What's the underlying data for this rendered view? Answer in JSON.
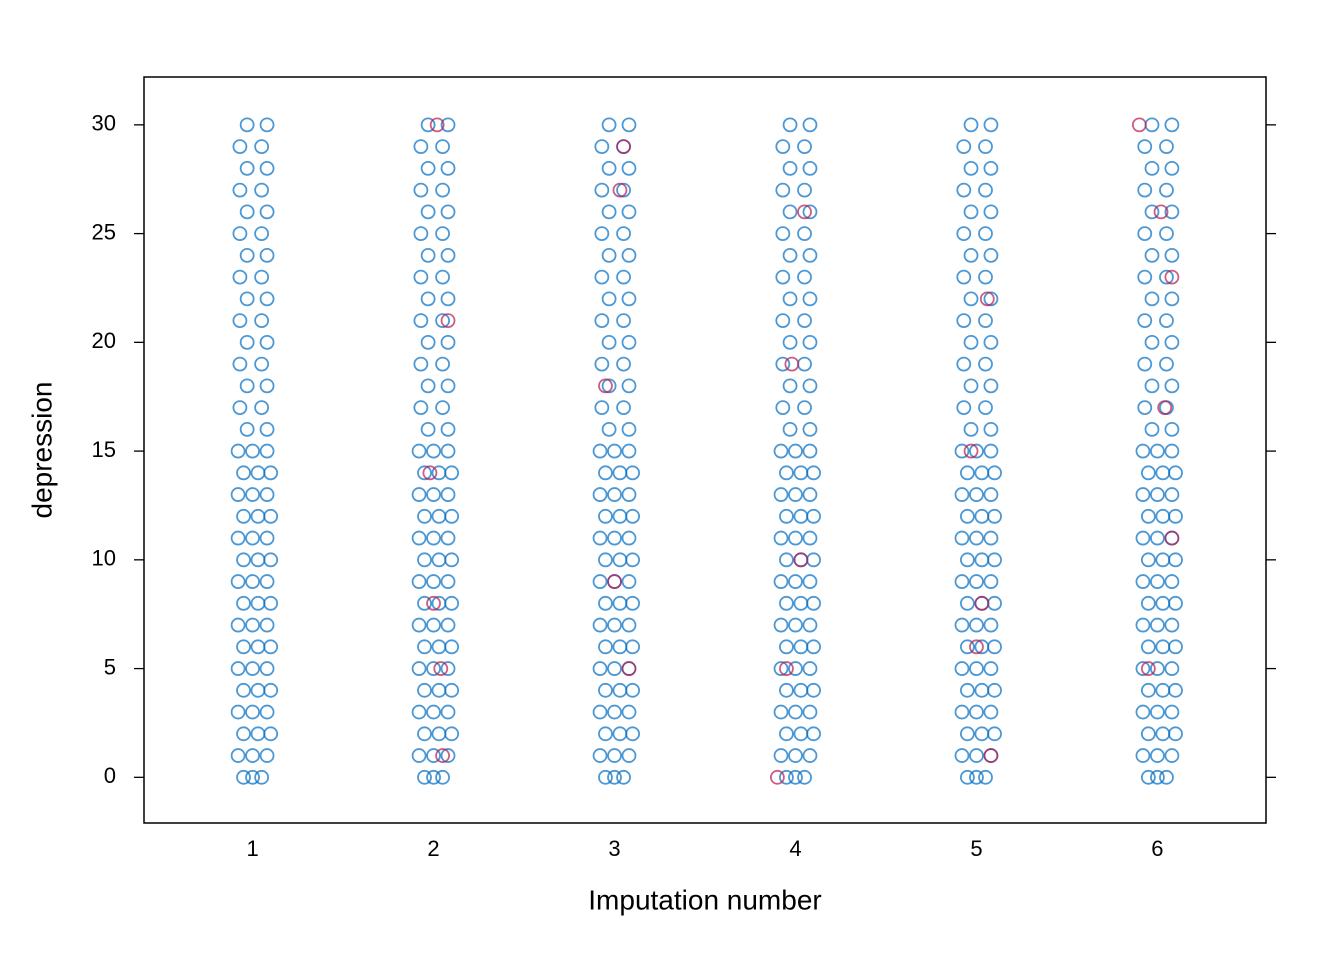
{
  "chart_data": {
    "type": "scatter",
    "xlabel": "Imputation number",
    "ylabel": "depression",
    "xlim": [
      0.4,
      6.6
    ],
    "ylim": [
      -2.1,
      32.2
    ],
    "xticks": [
      1,
      2,
      3,
      4,
      5,
      6
    ],
    "yticks": [
      0,
      5,
      10,
      15,
      20,
      25,
      30
    ],
    "series": [
      {
        "color": "#006cc2",
        "x": [
          0.95,
          1,
          1.05,
          0.92,
          1,
          1.08,
          0.95,
          1.03,
          1.1,
          0.92,
          1,
          1.08,
          0.95,
          1.03,
          1.1,
          0.92,
          1,
          1.08,
          0.95,
          1.03,
          1.1,
          0.92,
          1,
          1.08,
          0.95,
          1.03,
          1.1,
          0.92,
          1,
          1.08,
          0.95,
          1.03,
          1.1,
          0.92,
          1,
          1.08,
          0.95,
          1.03,
          1.1,
          0.92,
          1,
          1.08,
          0.95,
          1.03,
          1.1,
          0.92,
          1,
          1.08,
          0.97,
          1.08,
          0.93,
          1.05,
          0.97,
          1.08,
          0.93,
          1.05,
          0.97,
          1.08,
          0.93,
          1.05,
          0.97,
          1.08,
          0.93,
          1.05,
          0.97,
          1.08,
          0.93,
          1.05,
          0.97,
          1.08,
          0.93,
          1.05,
          0.97,
          1.08,
          0.93,
          1.05,
          0.97,
          1.08,
          1.95,
          2,
          2.05,
          1.92,
          2,
          2.08,
          1.95,
          2.03,
          2.1,
          1.92,
          2,
          2.08,
          1.95,
          2.03,
          2.1,
          1.92,
          2,
          2.08,
          1.95,
          2.03,
          2.1,
          1.92,
          2,
          2.08,
          1.95,
          2.03,
          2.1,
          1.92,
          2,
          2.08,
          1.95,
          2.03,
          2.1,
          1.92,
          2,
          2.08,
          1.95,
          2.03,
          2.1,
          1.92,
          2,
          2.08,
          1.95,
          2.03,
          2.1,
          1.92,
          2,
          2.08,
          1.97,
          2.08,
          1.93,
          2.05,
          1.97,
          2.08,
          1.93,
          2.05,
          1.97,
          2.08,
          1.93,
          2.05,
          1.97,
          2.08,
          1.93,
          2.05,
          1.97,
          2.08,
          1.93,
          2.05,
          1.97,
          2.08,
          1.93,
          2.05,
          1.97,
          2.08,
          1.93,
          2.05,
          1.97,
          2.08,
          2.95,
          3,
          3.05,
          2.92,
          3,
          3.08,
          2.95,
          3.03,
          3.1,
          2.92,
          3,
          3.08,
          2.95,
          3.03,
          3.1,
          2.92,
          3,
          3.08,
          2.95,
          3.03,
          3.1,
          2.92,
          3,
          3.08,
          2.95,
          3.03,
          3.1,
          2.92,
          3,
          3.08,
          2.95,
          3.03,
          3.1,
          2.92,
          3,
          3.08,
          2.95,
          3.03,
          3.1,
          2.92,
          3,
          3.08,
          2.95,
          3.03,
          3.1,
          2.92,
          3,
          3.08,
          2.97,
          3.08,
          2.93,
          3.05,
          2.97,
          3.08,
          2.93,
          3.05,
          2.97,
          3.08,
          2.93,
          3.05,
          2.97,
          3.08,
          2.93,
          3.05,
          2.97,
          3.08,
          2.93,
          3.05,
          2.97,
          3.08,
          2.93,
          3.05,
          2.97,
          3.08,
          2.93,
          3.05,
          2.97,
          3.08,
          3.95,
          4,
          4.05,
          3.92,
          4,
          4.08,
          3.95,
          4.03,
          4.1,
          3.92,
          4,
          4.08,
          3.95,
          4.03,
          4.1,
          3.92,
          4,
          4.08,
          3.95,
          4.03,
          4.1,
          3.92,
          4,
          4.08,
          3.95,
          4.03,
          4.1,
          3.92,
          4,
          4.08,
          3.95,
          4.03,
          4.1,
          3.92,
          4,
          4.08,
          3.95,
          4.03,
          4.1,
          3.92,
          4,
          4.08,
          3.95,
          4.03,
          4.1,
          3.92,
          4,
          4.08,
          3.97,
          4.08,
          3.93,
          4.05,
          3.97,
          4.08,
          3.93,
          4.05,
          3.97,
          4.08,
          3.93,
          4.05,
          3.97,
          4.08,
          3.93,
          4.05,
          3.97,
          4.08,
          3.93,
          4.05,
          3.97,
          4.08,
          3.93,
          4.05,
          3.97,
          4.08,
          3.93,
          4.05,
          3.97,
          4.08,
          4.95,
          5,
          5.05,
          4.92,
          5,
          5.08,
          4.95,
          5.03,
          5.1,
          4.92,
          5,
          5.08,
          4.95,
          5.03,
          5.1,
          4.92,
          5,
          5.08,
          4.95,
          5.03,
          5.1,
          4.92,
          5,
          5.08,
          4.95,
          5.03,
          5.1,
          4.92,
          5,
          5.08,
          4.95,
          5.03,
          5.1,
          4.92,
          5,
          5.08,
          4.95,
          5.03,
          5.1,
          4.92,
          5,
          5.08,
          4.95,
          5.03,
          5.1,
          4.92,
          5,
          5.08,
          4.97,
          5.08,
          4.93,
          5.05,
          4.97,
          5.08,
          4.93,
          5.05,
          4.97,
          5.08,
          4.93,
          5.05,
          4.97,
          5.08,
          4.93,
          5.05,
          4.97,
          5.08,
          4.93,
          5.05,
          4.97,
          5.08,
          4.93,
          5.05,
          4.97,
          5.08,
          4.93,
          5.05,
          4.97,
          5.08,
          5.95,
          6,
          6.05,
          5.92,
          6,
          6.08,
          5.95,
          6.03,
          6.1,
          5.92,
          6,
          6.08,
          5.95,
          6.03,
          6.1,
          5.92,
          6,
          6.08,
          5.95,
          6.03,
          6.1,
          5.92,
          6,
          6.08,
          5.95,
          6.03,
          6.1,
          5.92,
          6,
          6.08,
          5.95,
          6.03,
          6.1,
          5.92,
          6,
          6.08,
          5.95,
          6.03,
          6.1,
          5.92,
          6,
          6.08,
          5.95,
          6.03,
          6.1,
          5.92,
          6,
          6.08,
          5.97,
          6.08,
          5.93,
          6.05,
          5.97,
          6.08,
          5.93,
          6.05,
          5.97,
          6.08,
          5.93,
          6.05,
          5.97,
          6.08,
          5.93,
          6.05,
          5.97,
          6.08,
          5.93,
          6.05,
          5.97,
          6.08,
          5.93,
          6.05,
          5.97,
          6.08,
          5.93,
          6.05,
          5.97,
          6.08
        ],
        "values": [
          0,
          0,
          0,
          1,
          1,
          1,
          2,
          2,
          2,
          3,
          3,
          3,
          4,
          4,
          4,
          5,
          5,
          5,
          6,
          6,
          6,
          7,
          7,
          7,
          8,
          8,
          8,
          9,
          9,
          9,
          10,
          10,
          10,
          11,
          11,
          11,
          12,
          12,
          12,
          13,
          13,
          13,
          14,
          14,
          14,
          15,
          15,
          15,
          16,
          16,
          17,
          17,
          18,
          18,
          19,
          19,
          20,
          20,
          21,
          21,
          22,
          22,
          23,
          23,
          24,
          24,
          25,
          25,
          26,
          26,
          27,
          27,
          28,
          28,
          29,
          29,
          30,
          30,
          0,
          0,
          0,
          1,
          1,
          1,
          2,
          2,
          2,
          3,
          3,
          3,
          4,
          4,
          4,
          5,
          5,
          5,
          6,
          6,
          6,
          7,
          7,
          7,
          8,
          8,
          8,
          9,
          9,
          9,
          10,
          10,
          10,
          11,
          11,
          11,
          12,
          12,
          12,
          13,
          13,
          13,
          14,
          14,
          14,
          15,
          15,
          15,
          16,
          16,
          17,
          17,
          18,
          18,
          19,
          19,
          20,
          20,
          21,
          21,
          22,
          22,
          23,
          23,
          24,
          24,
          25,
          25,
          26,
          26,
          27,
          27,
          28,
          28,
          29,
          29,
          30,
          30,
          0,
          0,
          0,
          1,
          1,
          1,
          2,
          2,
          2,
          3,
          3,
          3,
          4,
          4,
          4,
          5,
          5,
          5,
          6,
          6,
          6,
          7,
          7,
          7,
          8,
          8,
          8,
          9,
          9,
          9,
          10,
          10,
          10,
          11,
          11,
          11,
          12,
          12,
          12,
          13,
          13,
          13,
          14,
          14,
          14,
          15,
          15,
          15,
          16,
          16,
          17,
          17,
          18,
          18,
          19,
          19,
          20,
          20,
          21,
          21,
          22,
          22,
          23,
          23,
          24,
          24,
          25,
          25,
          26,
          26,
          27,
          27,
          28,
          28,
          29,
          29,
          30,
          30,
          0,
          0,
          0,
          1,
          1,
          1,
          2,
          2,
          2,
          3,
          3,
          3,
          4,
          4,
          4,
          5,
          5,
          5,
          6,
          6,
          6,
          7,
          7,
          7,
          8,
          8,
          8,
          9,
          9,
          9,
          10,
          10,
          10,
          11,
          11,
          11,
          12,
          12,
          12,
          13,
          13,
          13,
          14,
          14,
          14,
          15,
          15,
          15,
          16,
          16,
          17,
          17,
          18,
          18,
          19,
          19,
          20,
          20,
          21,
          21,
          22,
          22,
          23,
          23,
          24,
          24,
          25,
          25,
          26,
          26,
          27,
          27,
          28,
          28,
          29,
          29,
          30,
          30,
          0,
          0,
          0,
          1,
          1,
          1,
          2,
          2,
          2,
          3,
          3,
          3,
          4,
          4,
          4,
          5,
          5,
          5,
          6,
          6,
          6,
          7,
          7,
          7,
          8,
          8,
          8,
          9,
          9,
          9,
          10,
          10,
          10,
          11,
          11,
          11,
          12,
          12,
          12,
          13,
          13,
          13,
          14,
          14,
          14,
          15,
          15,
          15,
          16,
          16,
          17,
          17,
          18,
          18,
          19,
          19,
          20,
          20,
          21,
          21,
          22,
          22,
          23,
          23,
          24,
          24,
          25,
          25,
          26,
          26,
          27,
          27,
          28,
          28,
          29,
          29,
          30,
          30,
          0,
          0,
          0,
          1,
          1,
          1,
          2,
          2,
          2,
          3,
          3,
          3,
          4,
          4,
          4,
          5,
          5,
          5,
          6,
          6,
          6,
          7,
          7,
          7,
          8,
          8,
          8,
          9,
          9,
          9,
          10,
          10,
          10,
          11,
          11,
          11,
          12,
          12,
          12,
          13,
          13,
          13,
          14,
          14,
          14,
          15,
          15,
          15,
          16,
          16,
          17,
          17,
          18,
          18,
          19,
          19,
          20,
          20,
          21,
          21,
          22,
          22,
          23,
          23,
          24,
          24,
          25,
          25,
          26,
          26,
          27,
          27,
          28,
          28,
          29,
          29,
          30,
          30
        ]
      },
      {
        "color": "#b61a51",
        "x": [
          2.02,
          2.05,
          2,
          1.98,
          2.04,
          2.08,
          3.05,
          3,
          2.95,
          3.08,
          3.03,
          3.9,
          4.03,
          3.98,
          4.05,
          3.95,
          5.08,
          5,
          4.97,
          5.06,
          5.03,
          5.9,
          6.02,
          6.08,
          5.95,
          6.04,
          6.08
        ],
        "values": [
          30,
          1,
          8,
          14,
          5,
          21,
          29,
          9,
          18,
          5,
          27,
          0,
          10,
          19,
          26,
          5,
          1,
          6,
          15,
          22,
          8,
          30,
          26,
          11,
          5,
          17,
          23
        ]
      }
    ]
  }
}
